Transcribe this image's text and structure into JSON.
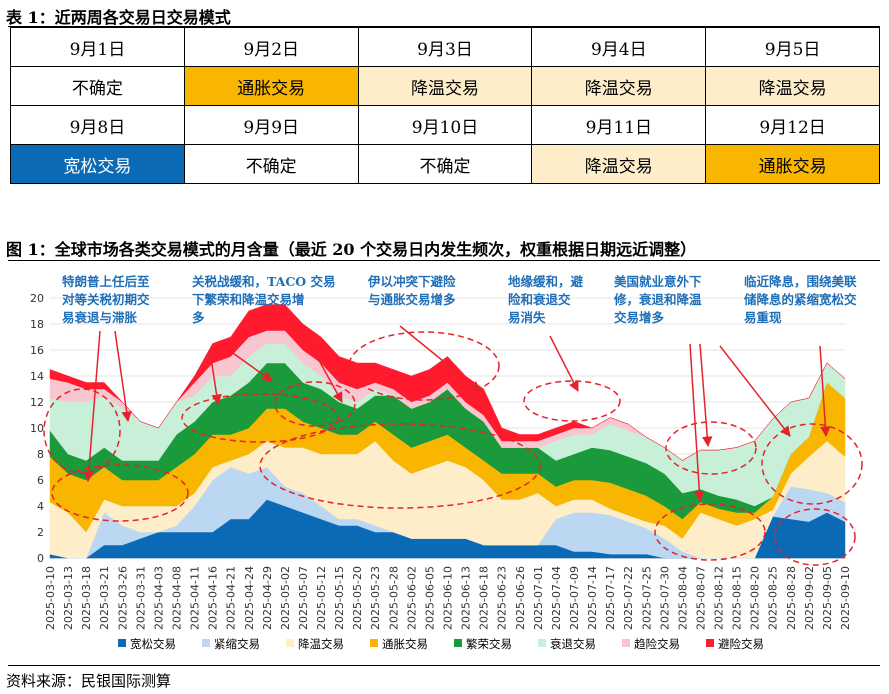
{
  "table_title": "表 1：近两周各交易日交易模式",
  "schedule": [
    {
      "date": "9月1日",
      "mode": "不确定",
      "cls": "uncertain"
    },
    {
      "date": "9月2日",
      "mode": "通胀交易",
      "cls": "inflation"
    },
    {
      "date": "9月3日",
      "mode": "降温交易",
      "cls": "cooling"
    },
    {
      "date": "9月4日",
      "mode": "降温交易",
      "cls": "cooling"
    },
    {
      "date": "9月5日",
      "mode": "降温交易",
      "cls": "cooling"
    },
    {
      "date": "9月8日",
      "mode": "宽松交易",
      "cls": "loose"
    },
    {
      "date": "9月9日",
      "mode": "不确定",
      "cls": "uncertain"
    },
    {
      "date": "9月10日",
      "mode": "不确定",
      "cls": "uncertain"
    },
    {
      "date": "9月11日",
      "mode": "降温交易",
      "cls": "cooling"
    },
    {
      "date": "9月12日",
      "mode": "通胀交易",
      "cls": "inflation"
    }
  ],
  "figure_title": "图 1：全球市场各类交易模式的月含量（最近 20 个交易日内发生频次，权重根据日期远近调整）",
  "source": "资料来源：民银国际测算",
  "chart_data": {
    "type": "area",
    "stacked": true,
    "ylim": [
      0,
      20
    ],
    "yticks": [
      0,
      2,
      4,
      6,
      8,
      10,
      12,
      14,
      16,
      18,
      20
    ],
    "x_tick_labels": [
      "2025-03-10",
      "2025-03-13",
      "2025-03-18",
      "2025-03-21",
      "2025-03-26",
      "2025-03-31",
      "2025-04-03",
      "2025-04-08",
      "2025-04-11",
      "2025-04-16",
      "2025-04-21",
      "2025-04-24",
      "2025-04-29",
      "2025-05-02",
      "2025-05-07",
      "2025-05-12",
      "2025-05-15",
      "2025-05-20",
      "2025-05-23",
      "2025-05-28",
      "2025-06-02",
      "2025-06-05",
      "2025-06-10",
      "2025-06-13",
      "2025-06-18",
      "2025-06-23",
      "2025-06-26",
      "2025-07-01",
      "2025-07-04",
      "2025-07-09",
      "2025-07-14",
      "2025-07-17",
      "2025-07-22",
      "2025-07-25",
      "2025-07-30",
      "2025-08-04",
      "2025-08-07",
      "2025-08-12",
      "2025-08-15",
      "2025-08-20",
      "2025-08-25",
      "2025-08-28",
      "2025-09-02",
      "2025-09-05",
      "2025-09-10"
    ],
    "x_periods": 45,
    "series": [
      {
        "name": "宽松交易",
        "color": "#0b6ab5",
        "values": [
          0.3,
          0,
          0,
          1,
          1,
          1.5,
          2,
          2,
          2,
          2,
          3,
          3,
          4.5,
          4,
          3.5,
          3,
          2.5,
          2.5,
          2,
          2,
          1.5,
          1.5,
          1.5,
          1.5,
          1,
          1,
          1,
          1,
          1,
          0.5,
          0.5,
          0.3,
          0.3,
          0.3,
          0,
          0,
          0,
          0,
          0,
          0,
          3.2,
          3,
          2.8,
          3.5,
          2.8
        ]
      },
      {
        "name": "紧缩交易",
        "color": "#bcd7f2",
        "values": [
          0,
          0,
          0,
          2.5,
          1.5,
          0.5,
          0,
          0.5,
          2,
          4,
          4,
          3.5,
          2.5,
          1.5,
          1.5,
          1,
          0.5,
          0.5,
          0.5,
          0,
          0,
          0,
          0,
          0,
          0,
          0,
          0,
          0,
          2,
          3,
          3,
          3,
          2.5,
          2,
          1.5,
          0.5,
          0,
          0,
          0,
          0,
          0,
          2.5,
          2.5,
          1.5,
          1.5
        ]
      },
      {
        "name": "降温交易",
        "color": "#fdedc9",
        "values": [
          4,
          3.5,
          2,
          1,
          1.5,
          2,
          2,
          1.5,
          1,
          1,
          0.5,
          1.5,
          2,
          3,
          3.5,
          4,
          5,
          5,
          6.5,
          5.5,
          5,
          5.5,
          6,
          5.5,
          5,
          3.5,
          3.5,
          4,
          1,
          1,
          1,
          0.5,
          0.5,
          0.5,
          1,
          1,
          3.5,
          3,
          2.5,
          3,
          0.5,
          1,
          2.5,
          4,
          3.5
        ]
      },
      {
        "name": "通胀交易",
        "color": "#f9b600",
        "values": [
          3.5,
          3,
          4,
          2.5,
          2,
          2,
          2,
          3,
          3,
          2.5,
          2,
          2,
          2.5,
          3,
          2,
          2,
          1.5,
          1.5,
          1.5,
          2,
          2,
          2,
          2,
          1.5,
          1.5,
          2,
          2,
          1.5,
          1.5,
          1.5,
          1.5,
          2,
          2,
          2,
          1.5,
          1.5,
          0.8,
          0.8,
          1,
          0.5,
          1,
          1.5,
          1.5,
          4.5,
          4.5
        ]
      },
      {
        "name": "繁荣交易",
        "color": "#1a9a3a",
        "values": [
          2,
          1.5,
          1.5,
          1.5,
          1.5,
          1.5,
          1.5,
          2.5,
          2.5,
          2.5,
          3,
          3.5,
          3.5,
          3.5,
          3,
          3,
          2.5,
          2,
          2,
          3,
          3,
          3,
          3.5,
          3,
          3,
          2,
          2,
          2,
          2,
          2,
          2.5,
          2.5,
          2.5,
          2.5,
          2.5,
          2,
          1,
          1,
          1,
          0.5,
          0,
          0,
          0,
          0,
          0
        ]
      },
      {
        "name": "衰退交易",
        "color": "#c8f0d8",
        "values": [
          2.5,
          4,
          4.5,
          4,
          4,
          3,
          2.5,
          2.5,
          2,
          2,
          1.5,
          2,
          1.5,
          1.5,
          1.5,
          1,
          0.5,
          0.5,
          0.5,
          0,
          0,
          0,
          0,
          0,
          0,
          0,
          0,
          0,
          1.5,
          1.5,
          1,
          2,
          2,
          2,
          2,
          2.5,
          3,
          3.5,
          4,
          5,
          6,
          4,
          3,
          1.5,
          1.5
        ]
      },
      {
        "name": "趋险交易",
        "color": "#f7c6d0",
        "values": [
          1.5,
          1.5,
          1,
          0.5,
          0.5,
          0,
          0,
          0,
          1,
          1,
          1.5,
          1.5,
          1,
          1,
          1,
          1,
          1,
          1,
          0.5,
          0.5,
          0.5,
          0.5,
          0.5,
          0.5,
          0.5,
          0.5,
          0.5,
          0.5,
          0.5,
          0.5,
          0.5,
          0.5,
          0.5,
          0,
          0,
          0,
          0,
          0,
          0,
          0,
          0,
          0,
          0,
          0,
          0
        ]
      },
      {
        "name": "避险交易",
        "color": "#ff1a2e",
        "values": [
          0.7,
          0.5,
          0.5,
          0.5,
          0,
          0,
          0,
          0,
          0.5,
          1.5,
          1.5,
          2,
          2,
          2,
          2,
          2,
          2,
          2,
          1.5,
          1.5,
          2,
          2,
          2,
          2,
          2,
          1,
          0.5,
          0.5,
          0.5,
          0.5,
          0,
          0,
          0,
          0,
          0,
          0,
          0,
          0,
          0,
          0,
          0,
          0,
          0,
          0,
          0
        ]
      }
    ],
    "annotations": [
      {
        "lines": [
          "特朗普上任后至",
          "对等关税初期交",
          "易衰退与滞胀"
        ]
      },
      {
        "lines": [
          "关税战缓和，TACO 交易",
          "下繁荣和降温交易增",
          "多"
        ]
      },
      {
        "lines": [
          "伊以冲突下避险",
          "与通胀交易增多"
        ]
      },
      {
        "lines": [
          "地缘缓和，避",
          "险和衰退交",
          "易消失"
        ]
      },
      {
        "lines": [
          "美国就业意外下",
          "修，衰退和降温",
          "交易增多"
        ]
      },
      {
        "lines": [
          "临近降息，围绕美联",
          "储降息的紧缩宽松交",
          "易重现"
        ]
      }
    ]
  }
}
